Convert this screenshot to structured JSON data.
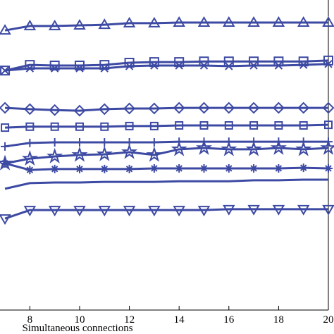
{
  "chart_data": {
    "type": "line",
    "x_label": "Simultaneous connections",
    "x": [
      7,
      8,
      9,
      10,
      11,
      12,
      13,
      14,
      15,
      16,
      17,
      18,
      19,
      20
    ],
    "xlim": [
      6.8,
      20
    ],
    "xticks": [
      8,
      10,
      12,
      14,
      16,
      18,
      20
    ],
    "ylim": [
      0,
      100
    ],
    "series": [
      {
        "color": "#3d4aa3",
        "marker": "triangle-up",
        "values": [
          90.3,
          91.7,
          91.7,
          91.9,
          92.1,
          92.6,
          92.6,
          92.8,
          92.8,
          92.8,
          92.8,
          92.8,
          92.8,
          92.8
        ]
      },
      {
        "color": "#3d4aa3",
        "marker": "square",
        "values": [
          77.5,
          79.3,
          79.1,
          79.1,
          79.3,
          80.0,
          80.2,
          80.2,
          80.4,
          80.4,
          80.4,
          80.4,
          80.4,
          80.7
        ]
      },
      {
        "color": "#3d4aa3",
        "marker": "x",
        "values": [
          77.5,
          78.2,
          78.2,
          78.2,
          78.2,
          78.9,
          79.1,
          79.1,
          79.1,
          78.9,
          79.1,
          79.1,
          79.3,
          79.6
        ]
      },
      {
        "color": "#3d4aa3",
        "marker": "diamond",
        "values": [
          65.6,
          65.2,
          64.9,
          64.7,
          65.2,
          65.4,
          65.4,
          65.6,
          65.6,
          65.6,
          65.6,
          65.6,
          65.6,
          65.6
        ]
      },
      {
        "color": "#3d4aa3",
        "marker": "small-square",
        "values": [
          59.3,
          59.6,
          59.6,
          59.6,
          59.6,
          59.8,
          59.8,
          60.0,
          60.0,
          60.0,
          60.0,
          60.0,
          60.0,
          60.2
        ]
      },
      {
        "color": "#3d4aa3",
        "marker": "plus",
        "values": [
          53.3,
          54.4,
          54.6,
          54.6,
          54.6,
          54.6,
          54.6,
          54.8,
          54.8,
          54.8,
          54.8,
          54.8,
          54.8,
          54.8
        ]
      },
      {
        "color": "#3d4aa3",
        "marker": "star",
        "values": [
          47.9,
          49.4,
          50.1,
          50.6,
          50.8,
          51.5,
          50.6,
          52.4,
          52.8,
          52.4,
          52.4,
          52.8,
          52.4,
          52.8
        ]
      },
      {
        "color": "#3d4aa3",
        "marker": "asterisk",
        "values": [
          47.9,
          45.8,
          46.1,
          46.1,
          46.1,
          46.1,
          46.3,
          46.3,
          46.3,
          46.3,
          46.3,
          46.3,
          46.5,
          46.3
        ]
      },
      {
        "color": "#3d4aa3",
        "marker": "none",
        "values": [
          39.8,
          41.6,
          41.8,
          41.8,
          42.0,
          42.0,
          42.0,
          42.2,
          42.2,
          42.2,
          42.5,
          42.5,
          42.7,
          42.7
        ]
      },
      {
        "color": "#3d4aa3",
        "marker": "triangle-down",
        "values": [
          30.3,
          33.0,
          33.0,
          33.0,
          33.0,
          33.0,
          33.0,
          33.0,
          33.0,
          33.3,
          33.3,
          33.3,
          33.3,
          33.3
        ]
      }
    ]
  }
}
